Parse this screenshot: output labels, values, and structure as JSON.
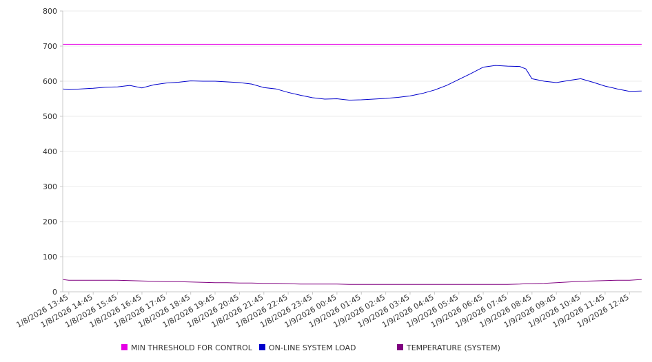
{
  "chart_data": {
    "type": "line",
    "title": "",
    "xlabel": "",
    "ylabel": "",
    "ylim": [
      0,
      800
    ],
    "y_ticks": [
      0,
      100,
      200,
      300,
      400,
      500,
      600,
      700,
      800
    ],
    "grid": "horizontal",
    "legend_placement": "bottom",
    "x_tick_labels": [
      "1/8/2026 13:45",
      "1/8/2026 14:45",
      "1/8/2026 15:45",
      "1/8/2026 16:45",
      "1/8/2026 17:45",
      "1/8/2026 18:45",
      "1/8/2026 19:45",
      "1/8/2026 20:45",
      "1/8/2026 21:45",
      "1/8/2026 22:45",
      "1/8/2026 23:45",
      "1/9/2026 00:45",
      "1/9/2026 01:45",
      "1/9/2026 02:45",
      "1/9/2026 03:45",
      "1/9/2026 04:45",
      "1/9/2026 05:45",
      "1/9/2026 06:45",
      "1/9/2026 07:45",
      "1/9/2026 08:45",
      "1/9/2026 09:45",
      "1/9/2026 10:45",
      "1/9/2026 11:45",
      "1/9/2026 12:45"
    ],
    "x": [
      "1/8/2026 13:30",
      "1/8/2026 13:45",
      "1/8/2026 14:15",
      "1/8/2026 14:45",
      "1/8/2026 15:15",
      "1/8/2026 15:45",
      "1/8/2026 16:15",
      "1/8/2026 16:45",
      "1/8/2026 17:15",
      "1/8/2026 17:45",
      "1/8/2026 18:15",
      "1/8/2026 18:45",
      "1/8/2026 19:15",
      "1/8/2026 19:45",
      "1/8/2026 20:15",
      "1/8/2026 20:45",
      "1/8/2026 21:15",
      "1/8/2026 21:45",
      "1/8/2026 22:15",
      "1/8/2026 22:45",
      "1/8/2026 23:15",
      "1/8/2026 23:45",
      "1/9/2026 00:15",
      "1/9/2026 00:45",
      "1/9/2026 01:15",
      "1/9/2026 01:45",
      "1/9/2026 02:15",
      "1/9/2026 02:45",
      "1/9/2026 03:15",
      "1/9/2026 03:45",
      "1/9/2026 04:15",
      "1/9/2026 04:45",
      "1/9/2026 05:15",
      "1/9/2026 05:45",
      "1/9/2026 06:15",
      "1/9/2026 06:45",
      "1/9/2026 07:15",
      "1/9/2026 07:45",
      "1/9/2026 08:15",
      "1/9/2026 08:30",
      "1/9/2026 08:45",
      "1/9/2026 09:15",
      "1/9/2026 09:45",
      "1/9/2026 10:15",
      "1/9/2026 10:45",
      "1/9/2026 11:15",
      "1/9/2026 11:45",
      "1/9/2026 12:15",
      "1/9/2026 12:45",
      "1/9/2026 13:15"
    ],
    "series": [
      {
        "name": "MIN THRESHOLD FOR CONTROL",
        "color": "#e600e6",
        "values": [
          705,
          705,
          705,
          705,
          705,
          705,
          705,
          705,
          705,
          705,
          705,
          705,
          705,
          705,
          705,
          705,
          705,
          705,
          705,
          705,
          705,
          705,
          705,
          705,
          705,
          705,
          705,
          705,
          705,
          705,
          705,
          705,
          705,
          705,
          705,
          705,
          705,
          705,
          705,
          705,
          705,
          705,
          705,
          705,
          705,
          705,
          705,
          705,
          705,
          705
        ]
      },
      {
        "name": "ON-LINE SYSTEM LOAD",
        "color": "#0000cc",
        "values": [
          578,
          576,
          578,
          580,
          583,
          584,
          588,
          581,
          590,
          595,
          597,
          601,
          600,
          600,
          598,
          596,
          592,
          582,
          578,
          568,
          560,
          553,
          549,
          550,
          546,
          547,
          549,
          551,
          554,
          558,
          565,
          575,
          588,
          605,
          622,
          640,
          645,
          643,
          642,
          635,
          607,
          600,
          596,
          602,
          607,
          597,
          586,
          578,
          571,
          572
        ]
      },
      {
        "name": "TEMPERATURE (SYSTEM)",
        "color": "#800080",
        "values": [
          35,
          33,
          33,
          33,
          33,
          33,
          32,
          31,
          30,
          29,
          29,
          28,
          27,
          26,
          26,
          25,
          25,
          24,
          24,
          23,
          22,
          22,
          22,
          22,
          21,
          21,
          21,
          21,
          21,
          21,
          21,
          21,
          21,
          21,
          21,
          21,
          21,
          21,
          22,
          23,
          23,
          24,
          26,
          28,
          30,
          31,
          32,
          33,
          33,
          35
        ]
      }
    ]
  }
}
